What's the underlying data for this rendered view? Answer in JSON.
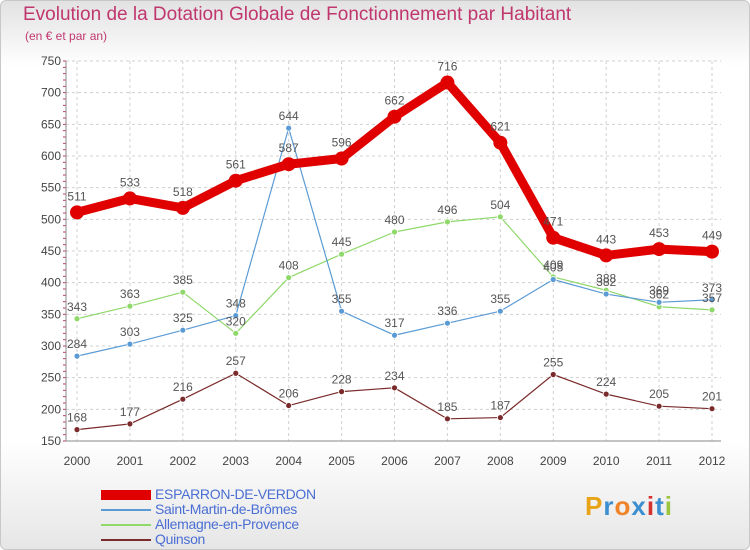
{
  "title": "Evolution de la Dotation Globale de Fonctionnement par Habitant",
  "subtitle": "(en € et par an)",
  "logo": {
    "text": "Proxiti",
    "colors": [
      "#e8a317",
      "#3b8fd1",
      "#f0832a",
      "#3b8fd1",
      "#d4322f",
      "#3b8fd1",
      "#9bc53d"
    ]
  },
  "chart_data": {
    "type": "line",
    "x": [
      "2000",
      "2001",
      "2002",
      "2003",
      "2004",
      "2005",
      "2006",
      "2007",
      "2008",
      "2009",
      "2010",
      "2011",
      "2012"
    ],
    "ylim": [
      150,
      750
    ],
    "yticks": [
      150,
      200,
      250,
      300,
      350,
      400,
      450,
      500,
      550,
      600,
      650,
      700,
      750
    ],
    "grid": true,
    "legend_position": "bottom-left",
    "series": [
      {
        "name": "ESPARRON-DE-VERDON",
        "color": "#e00000",
        "values": [
          511,
          533,
          518,
          561,
          587,
          596,
          662,
          716,
          621,
          471,
          443,
          453,
          449
        ]
      },
      {
        "name": "Saint-Martin-de-Brômes",
        "color": "#5b9bd5",
        "values": [
          284,
          303,
          325,
          348,
          644,
          355,
          317,
          336,
          355,
          405,
          382,
          369,
          373
        ]
      },
      {
        "name": "Allemagne-en-Provence",
        "color": "#8fd86a",
        "values": [
          343,
          363,
          385,
          320,
          408,
          445,
          480,
          496,
          504,
          409,
          388,
          362,
          357
        ]
      },
      {
        "name": "Quinson",
        "color": "#7a2a2a",
        "values": [
          168,
          177,
          216,
          257,
          206,
          228,
          234,
          185,
          187,
          255,
          224,
          205,
          201
        ]
      }
    ]
  }
}
